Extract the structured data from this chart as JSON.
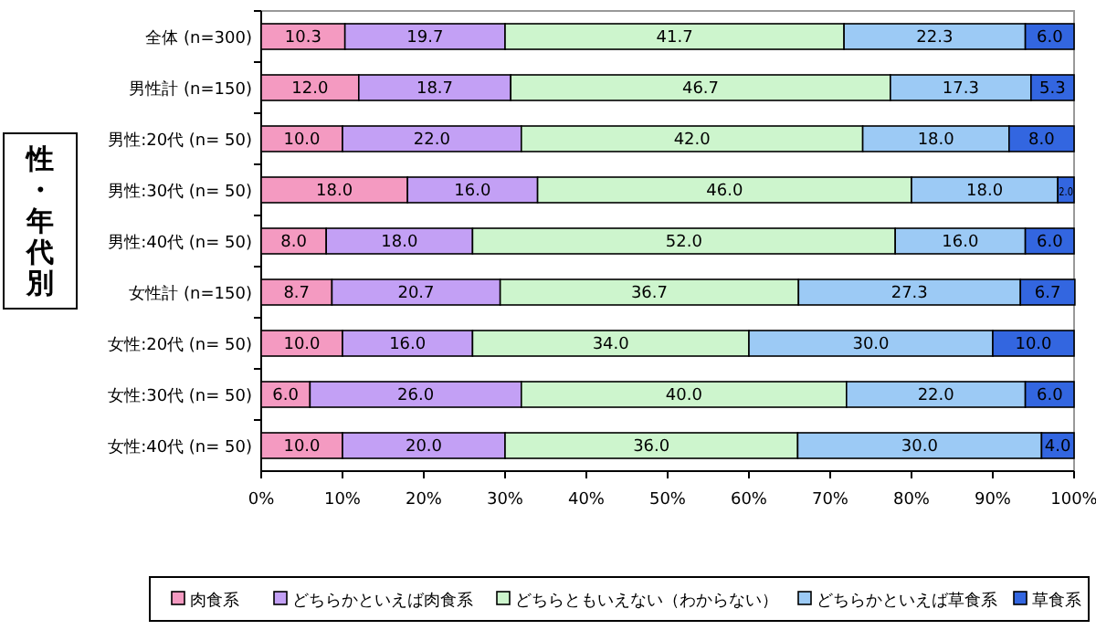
{
  "chart_data": {
    "type": "bar",
    "orientation": "horizontal",
    "stacked": true,
    "legend": "bottom",
    "ylabel": "性・年代別",
    "categories": [
      "全体 (n=300)",
      "男性計 (n=150)",
      "男性:20代 (n= 50)",
      "男性:30代 (n= 50)",
      "男性:40代 (n= 50)",
      "女性計 (n=150)",
      "女性:20代 (n= 50)",
      "女性:30代 (n= 50)",
      "女性:40代 (n= 50)"
    ],
    "xlim": [
      0,
      100
    ],
    "xticks": [
      {
        "value": 0,
        "label": "0%"
      },
      {
        "value": 10,
        "label": "10%"
      },
      {
        "value": 20,
        "label": "20%"
      },
      {
        "value": 30,
        "label": "30%"
      },
      {
        "value": 40,
        "label": "40%"
      },
      {
        "value": 50,
        "label": "50%"
      },
      {
        "value": 60,
        "label": "60%"
      },
      {
        "value": 70,
        "label": "70%"
      },
      {
        "value": 80,
        "label": "80%"
      },
      {
        "value": 90,
        "label": "90%"
      },
      {
        "value": 100,
        "label": "100%"
      }
    ],
    "series": [
      {
        "name": "肉食系",
        "color": "#f49ac1",
        "values": [
          10.3,
          12.0,
          10.0,
          18.0,
          8.0,
          8.7,
          10.0,
          6.0,
          10.0
        ],
        "value_labels": [
          "10.3",
          "12.0",
          "10.0",
          "18.0",
          "8.0",
          "8.7",
          "10.0",
          "6.0",
          "10.0"
        ]
      },
      {
        "name": "どちらかといえば肉食系",
        "color": "#c3a0f5",
        "values": [
          19.7,
          18.7,
          22.0,
          16.0,
          18.0,
          20.7,
          16.0,
          26.0,
          20.0
        ],
        "value_labels": [
          "19.7",
          "18.7",
          "22.0",
          "16.0",
          "18.0",
          "20.7",
          "16.0",
          "26.0",
          "20.0"
        ]
      },
      {
        "name": "どちらともいえない（わからない）",
        "color": "#cdf5cd",
        "values": [
          41.7,
          46.7,
          42.0,
          46.0,
          52.0,
          36.7,
          34.0,
          40.0,
          36.0
        ],
        "value_labels": [
          "41.7",
          "46.7",
          "42.0",
          "46.0",
          "52.0",
          "36.7",
          "34.0",
          "40.0",
          "36.0"
        ]
      },
      {
        "name": "どちらかといえば草食系",
        "color": "#9ccaf5",
        "values": [
          22.3,
          17.3,
          18.0,
          18.0,
          16.0,
          27.3,
          30.0,
          22.0,
          30.0
        ],
        "value_labels": [
          "22.3",
          "17.3",
          "18.0",
          "18.0",
          "16.0",
          "27.3",
          "30.0",
          "22.0",
          "30.0"
        ]
      },
      {
        "name": "草食系",
        "color": "#3366e0",
        "values": [
          6.0,
          5.3,
          8.0,
          2.0,
          6.0,
          6.7,
          10.0,
          6.0,
          4.0
        ],
        "value_labels": [
          "6.0",
          "5.3",
          "8.0",
          "2.0",
          "6.0",
          "6.7",
          "10.0",
          "6.0",
          "4.0"
        ]
      }
    ]
  }
}
